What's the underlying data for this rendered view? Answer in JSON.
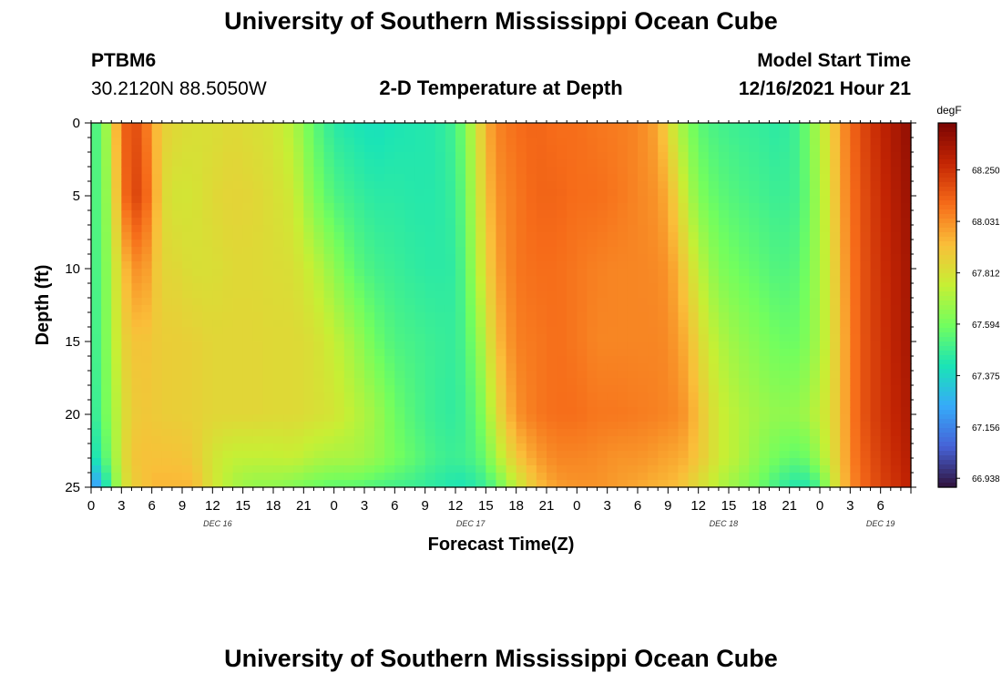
{
  "header": {
    "title": "University of Southern Mississippi Ocean Cube",
    "station": "PTBM6",
    "coords": "30.2120N  88.5050W",
    "chart_title": "2-D Temperature at Depth",
    "model_label": "Model Start Time",
    "model_time": "12/16/2021 Hour 21"
  },
  "footer": {
    "title": "University of Southern Mississippi Ocean Cube"
  },
  "colors": {
    "scale": [
      "#30123b",
      "#4662d7",
      "#36aaf9",
      "#1ae4b6",
      "#72fe5e",
      "#c7ef34",
      "#fabe39",
      "#f66b19",
      "#c42503",
      "#7a0403"
    ]
  },
  "chart_data": {
    "type": "heatmap",
    "title": "2-D Temperature at Depth",
    "xlabel": "Forecast Time(Z)",
    "ylabel": "Depth (ft)",
    "x_hours_range": [
      0,
      81
    ],
    "y_range": [
      0,
      25
    ],
    "x_tick_labels": [
      "0",
      "3",
      "6",
      "9",
      "12",
      "15",
      "18",
      "21",
      "0",
      "3",
      "6",
      "9",
      "12",
      "15",
      "18",
      "21",
      "0",
      "3",
      "6",
      "9",
      "12",
      "15",
      "18",
      "21",
      "0",
      "3",
      "6"
    ],
    "y_ticks": [
      0,
      5,
      10,
      15,
      20,
      25
    ],
    "day_labels": [
      {
        "label": "DEC 16",
        "hour": 12.5
      },
      {
        "label": "DEC 17",
        "hour": 37.5
      },
      {
        "label": "DEC 18",
        "hour": 62.5
      },
      {
        "label": "DEC 19",
        "hour": 78
      }
    ],
    "colorbar": {
      "units": "degF",
      "ticks": [
        "68.250",
        "68.031",
        "67.812",
        "67.594",
        "67.375",
        "67.156",
        "66.938"
      ],
      "tick_values": [
        68.25,
        68.031,
        67.812,
        67.594,
        67.375,
        67.156,
        66.938
      ],
      "range": [
        66.9,
        68.45
      ]
    },
    "profile_hours": [
      0,
      1,
      2,
      3,
      4,
      5,
      6,
      7,
      8,
      10,
      12,
      14,
      16,
      18,
      20,
      22,
      24,
      26,
      28,
      30,
      32,
      34,
      36,
      37,
      38,
      39,
      40,
      42,
      44,
      46,
      48,
      50,
      52,
      54,
      56,
      57,
      58,
      59,
      60,
      61,
      62,
      64,
      66,
      68,
      70,
      71,
      72,
      73,
      74,
      75,
      76,
      78,
      80,
      81
    ],
    "profile_depths": [
      0,
      5,
      10,
      15,
      20,
      23,
      25
    ],
    "temperature_degF": [
      [
        67.5,
        67.5,
        67.48,
        67.46,
        67.42,
        67.38,
        67.15
      ],
      [
        67.55,
        67.55,
        67.55,
        67.55,
        67.55,
        67.48,
        67.3
      ],
      [
        67.8,
        67.75,
        67.7,
        67.68,
        67.65,
        67.62,
        67.55
      ],
      [
        68.1,
        68.05,
        67.9,
        67.85,
        67.8,
        67.8,
        67.75
      ],
      [
        68.18,
        68.2,
        68.0,
        67.9,
        67.88,
        67.9,
        67.88
      ],
      [
        68.15,
        68.18,
        68.05,
        67.92,
        67.9,
        67.92,
        67.9
      ],
      [
        68.0,
        68.05,
        67.95,
        67.9,
        67.9,
        67.92,
        67.95
      ],
      [
        67.88,
        67.85,
        67.85,
        67.88,
        67.88,
        67.92,
        67.95
      ],
      [
        67.85,
        67.8,
        67.85,
        67.88,
        67.88,
        67.92,
        67.95
      ],
      [
        67.82,
        67.8,
        67.82,
        67.87,
        67.87,
        67.9,
        67.95
      ],
      [
        67.82,
        67.84,
        67.82,
        67.85,
        67.85,
        67.8,
        67.8
      ],
      [
        67.84,
        67.86,
        67.84,
        67.85,
        67.85,
        67.75,
        67.7
      ],
      [
        67.82,
        67.85,
        67.84,
        67.85,
        67.85,
        67.75,
        67.65
      ],
      [
        67.8,
        67.82,
        67.83,
        67.84,
        67.84,
        67.75,
        67.65
      ],
      [
        67.72,
        67.78,
        67.82,
        67.84,
        67.84,
        67.76,
        67.62
      ],
      [
        67.55,
        67.62,
        67.75,
        67.82,
        67.82,
        67.72,
        67.58
      ],
      [
        67.45,
        67.52,
        67.65,
        67.76,
        67.8,
        67.7,
        67.55
      ],
      [
        67.42,
        67.48,
        67.55,
        67.68,
        67.74,
        67.7,
        67.55
      ],
      [
        67.4,
        67.45,
        67.5,
        67.58,
        67.68,
        67.66,
        67.52
      ],
      [
        67.42,
        67.45,
        67.48,
        67.52,
        67.58,
        67.6,
        67.5
      ],
      [
        67.43,
        67.44,
        67.46,
        67.5,
        67.52,
        67.55,
        67.48
      ],
      [
        67.44,
        67.44,
        67.45,
        67.48,
        67.48,
        67.5,
        67.45
      ],
      [
        67.5,
        67.48,
        67.46,
        67.47,
        67.46,
        67.48,
        67.42
      ],
      [
        67.62,
        67.58,
        67.55,
        67.52,
        67.5,
        67.5,
        67.42
      ],
      [
        67.78,
        67.75,
        67.7,
        67.62,
        67.55,
        67.52,
        67.45
      ],
      [
        67.95,
        67.9,
        67.85,
        67.75,
        67.65,
        67.58,
        67.48
      ],
      [
        68.05,
        68.02,
        67.98,
        67.92,
        67.82,
        67.7,
        67.55
      ],
      [
        68.1,
        68.08,
        68.08,
        68.06,
        68.02,
        67.9,
        67.75
      ],
      [
        68.12,
        68.12,
        68.1,
        68.08,
        68.08,
        68.0,
        67.92
      ],
      [
        68.1,
        68.12,
        68.1,
        68.1,
        68.1,
        68.05,
        68.0
      ],
      [
        68.1,
        68.1,
        68.08,
        68.08,
        68.1,
        68.05,
        68.02
      ],
      [
        68.08,
        68.1,
        68.06,
        68.05,
        68.08,
        68.04,
        68.02
      ],
      [
        68.07,
        68.08,
        68.05,
        68.05,
        68.08,
        68.02,
        68.0
      ],
      [
        68.05,
        68.05,
        68.05,
        68.05,
        68.07,
        68.02,
        67.98
      ],
      [
        67.98,
        68.02,
        68.04,
        68.05,
        68.06,
        68.0,
        67.95
      ],
      [
        67.85,
        67.96,
        68.02,
        68.04,
        68.05,
        67.98,
        67.95
      ],
      [
        67.72,
        67.85,
        67.95,
        68.0,
        68.04,
        67.98,
        67.92
      ],
      [
        67.62,
        67.72,
        67.85,
        67.95,
        68.0,
        67.95,
        67.88
      ],
      [
        67.55,
        67.62,
        67.75,
        67.85,
        67.92,
        67.9,
        67.82
      ],
      [
        67.52,
        67.58,
        67.68,
        67.78,
        67.85,
        67.85,
        67.78
      ],
      [
        67.5,
        67.55,
        67.62,
        67.72,
        67.78,
        67.78,
        67.72
      ],
      [
        67.48,
        67.52,
        67.58,
        67.66,
        67.72,
        67.72,
        67.65
      ],
      [
        67.47,
        67.5,
        67.55,
        67.62,
        67.68,
        67.64,
        67.58
      ],
      [
        67.45,
        67.48,
        67.52,
        67.58,
        67.65,
        67.58,
        67.48
      ],
      [
        67.5,
        67.5,
        67.54,
        67.58,
        67.66,
        67.55,
        67.42
      ],
      [
        67.62,
        67.6,
        67.62,
        67.64,
        67.7,
        67.6,
        67.45
      ],
      [
        67.72,
        67.7,
        67.7,
        67.7,
        67.76,
        67.68,
        67.52
      ],
      [
        67.85,
        67.82,
        67.8,
        67.8,
        67.82,
        67.8,
        67.72
      ],
      [
        68.0,
        67.98,
        67.95,
        67.92,
        67.92,
        67.9,
        67.88
      ],
      [
        68.1,
        68.08,
        68.06,
        68.05,
        68.05,
        68.05,
        68.02
      ],
      [
        68.18,
        68.16,
        68.15,
        68.15,
        68.15,
        68.12,
        68.1
      ],
      [
        68.28,
        68.26,
        68.25,
        68.24,
        68.24,
        68.22,
        68.2
      ],
      [
        68.36,
        68.34,
        68.32,
        68.32,
        68.3,
        68.28,
        68.26
      ],
      [
        68.4,
        68.38,
        68.36,
        68.35,
        68.34,
        68.32,
        68.3
      ]
    ]
  }
}
